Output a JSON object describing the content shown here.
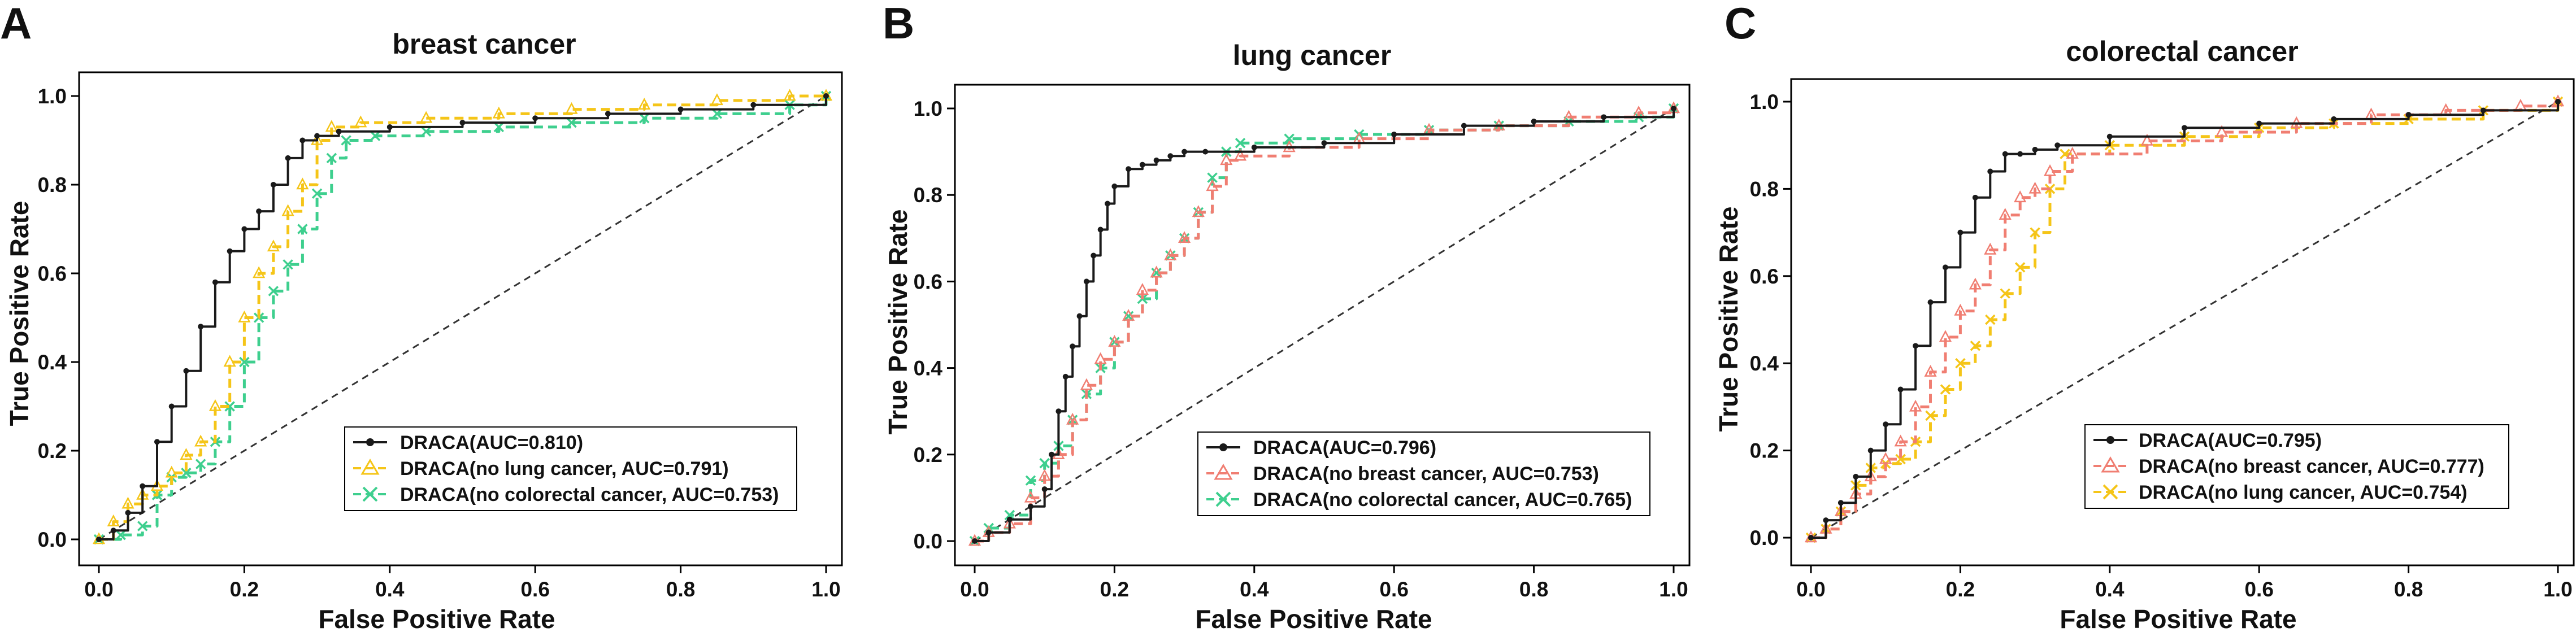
{
  "figure": {
    "panels": [
      "A",
      "B",
      "C"
    ]
  },
  "colors": {
    "draca": "#1a1a1a",
    "yellow": "#f5c518",
    "green": "#3ecf8e",
    "salmon": "#f07e72",
    "diagonal": "#333333",
    "frame": "#000000"
  },
  "chart_data": [
    {
      "type": "line",
      "panel": "A",
      "title": "breast cancer",
      "xlabel": "False Positive Rate",
      "ylabel": "True Positive Rate",
      "xlim": [
        0.0,
        1.0
      ],
      "ylim": [
        0.0,
        1.0
      ],
      "xticks": [
        "0.0",
        "0.2",
        "0.4",
        "0.6",
        "0.8",
        "1.0"
      ],
      "yticks": [
        "0.0",
        "0.2",
        "0.4",
        "0.6",
        "0.8",
        "1.0"
      ],
      "legend_position": "bottom-right",
      "diagonal": true,
      "series": [
        {
          "name": "DRACA(AUC=0.810)",
          "color": "#1a1a1a",
          "style": "solid",
          "marker": "dot",
          "x": [
            0.0,
            0.02,
            0.04,
            0.06,
            0.08,
            0.1,
            0.12,
            0.14,
            0.16,
            0.18,
            0.2,
            0.22,
            0.24,
            0.26,
            0.28,
            0.3,
            0.33,
            0.4,
            0.5,
            0.6,
            0.7,
            0.8,
            0.9,
            1.0
          ],
          "y": [
            0.0,
            0.02,
            0.06,
            0.12,
            0.22,
            0.3,
            0.38,
            0.48,
            0.58,
            0.65,
            0.7,
            0.74,
            0.8,
            0.86,
            0.9,
            0.91,
            0.92,
            0.93,
            0.94,
            0.95,
            0.96,
            0.97,
            0.98,
            1.0
          ]
        },
        {
          "name": "DRACA(no lung cancer, AUC=0.791)",
          "color": "#f5c518",
          "style": "dashed",
          "marker": "triangle",
          "x": [
            0.0,
            0.02,
            0.04,
            0.06,
            0.08,
            0.1,
            0.12,
            0.14,
            0.16,
            0.18,
            0.2,
            0.22,
            0.24,
            0.26,
            0.28,
            0.3,
            0.32,
            0.36,
            0.45,
            0.55,
            0.65,
            0.75,
            0.85,
            0.95,
            1.0
          ],
          "y": [
            0.0,
            0.04,
            0.08,
            0.1,
            0.12,
            0.15,
            0.19,
            0.22,
            0.3,
            0.4,
            0.5,
            0.6,
            0.66,
            0.74,
            0.8,
            0.9,
            0.93,
            0.94,
            0.95,
            0.96,
            0.97,
            0.98,
            0.99,
            1.0,
            1.0
          ]
        },
        {
          "name": "DRACA(no colorectal cancer, AUC=0.753)",
          "color": "#3ecf8e",
          "style": "dashed",
          "marker": "x",
          "x": [
            0.0,
            0.03,
            0.06,
            0.08,
            0.1,
            0.12,
            0.14,
            0.16,
            0.18,
            0.2,
            0.22,
            0.24,
            0.26,
            0.28,
            0.3,
            0.32,
            0.34,
            0.38,
            0.45,
            0.55,
            0.65,
            0.75,
            0.85,
            0.95,
            1.0
          ],
          "y": [
            0.0,
            0.01,
            0.03,
            0.1,
            0.14,
            0.15,
            0.17,
            0.22,
            0.3,
            0.4,
            0.5,
            0.56,
            0.62,
            0.7,
            0.78,
            0.86,
            0.9,
            0.91,
            0.92,
            0.93,
            0.94,
            0.95,
            0.96,
            0.98,
            1.0
          ]
        }
      ]
    },
    {
      "type": "line",
      "panel": "B",
      "title": "lung cancer",
      "xlabel": "False Positive Rate",
      "ylabel": "True Positive Rate",
      "xlim": [
        0.0,
        1.0
      ],
      "ylim": [
        0.0,
        1.0
      ],
      "xticks": [
        "0.0",
        "0.2",
        "0.4",
        "0.6",
        "0.8",
        "1.0"
      ],
      "yticks": [
        "0.0",
        "0.2",
        "0.4",
        "0.6",
        "0.8",
        "1.0"
      ],
      "legend_position": "bottom-right",
      "diagonal": true,
      "series": [
        {
          "name": "DRACA(AUC=0.796)",
          "color": "#1a1a1a",
          "style": "solid",
          "marker": "dot",
          "x": [
            0.0,
            0.02,
            0.05,
            0.08,
            0.1,
            0.11,
            0.12,
            0.13,
            0.14,
            0.15,
            0.16,
            0.17,
            0.18,
            0.19,
            0.2,
            0.22,
            0.24,
            0.26,
            0.28,
            0.3,
            0.33,
            0.4,
            0.5,
            0.6,
            0.7,
            0.8,
            0.9,
            1.0
          ],
          "y": [
            0.0,
            0.02,
            0.05,
            0.08,
            0.12,
            0.2,
            0.3,
            0.38,
            0.45,
            0.52,
            0.6,
            0.66,
            0.72,
            0.78,
            0.82,
            0.86,
            0.87,
            0.88,
            0.89,
            0.9,
            0.9,
            0.91,
            0.92,
            0.94,
            0.96,
            0.97,
            0.98,
            1.0
          ]
        },
        {
          "name": "DRACA(no breast cancer, AUC=0.753)",
          "color": "#f07e72",
          "style": "dashed",
          "marker": "triangle",
          "x": [
            0.0,
            0.02,
            0.05,
            0.08,
            0.1,
            0.12,
            0.14,
            0.16,
            0.18,
            0.2,
            0.22,
            0.24,
            0.26,
            0.28,
            0.3,
            0.32,
            0.34,
            0.36,
            0.38,
            0.45,
            0.55,
            0.65,
            0.75,
            0.85,
            0.95,
            1.0
          ],
          "y": [
            0.0,
            0.02,
            0.04,
            0.1,
            0.15,
            0.2,
            0.28,
            0.36,
            0.42,
            0.46,
            0.52,
            0.58,
            0.62,
            0.66,
            0.7,
            0.76,
            0.82,
            0.88,
            0.89,
            0.91,
            0.93,
            0.95,
            0.96,
            0.98,
            0.99,
            1.0
          ]
        },
        {
          "name": "DRACA(no colorectal cancer, AUC=0.765)",
          "color": "#3ecf8e",
          "style": "dashed",
          "marker": "x",
          "x": [
            0.0,
            0.02,
            0.05,
            0.08,
            0.1,
            0.12,
            0.14,
            0.16,
            0.18,
            0.2,
            0.22,
            0.24,
            0.26,
            0.28,
            0.3,
            0.32,
            0.34,
            0.36,
            0.38,
            0.45,
            0.55,
            0.65,
            0.75,
            0.85,
            0.95,
            1.0
          ],
          "y": [
            0.0,
            0.03,
            0.06,
            0.14,
            0.18,
            0.22,
            0.28,
            0.34,
            0.4,
            0.46,
            0.52,
            0.56,
            0.62,
            0.66,
            0.7,
            0.76,
            0.84,
            0.9,
            0.92,
            0.93,
            0.94,
            0.95,
            0.96,
            0.97,
            0.98,
            1.0
          ]
        }
      ]
    },
    {
      "type": "line",
      "panel": "C",
      "title": "colorectal cancer",
      "xlabel": "False Positive Rate",
      "ylabel": "True Positive Rate",
      "xlim": [
        0.0,
        1.0
      ],
      "ylim": [
        0.0,
        1.0
      ],
      "xticks": [
        "0.0",
        "0.2",
        "0.4",
        "0.6",
        "0.8",
        "1.0"
      ],
      "yticks": [
        "0.0",
        "0.2",
        "0.4",
        "0.6",
        "0.8",
        "1.0"
      ],
      "legend_position": "bottom-right",
      "diagonal": true,
      "series": [
        {
          "name": "DRACA(AUC=0.795)",
          "color": "#1a1a1a",
          "style": "solid",
          "marker": "dot",
          "x": [
            0.0,
            0.02,
            0.04,
            0.06,
            0.08,
            0.1,
            0.12,
            0.14,
            0.16,
            0.18,
            0.2,
            0.22,
            0.24,
            0.26,
            0.28,
            0.3,
            0.33,
            0.4,
            0.5,
            0.6,
            0.7,
            0.8,
            0.9,
            1.0
          ],
          "y": [
            0.0,
            0.04,
            0.08,
            0.14,
            0.2,
            0.26,
            0.34,
            0.44,
            0.54,
            0.62,
            0.7,
            0.78,
            0.84,
            0.88,
            0.88,
            0.89,
            0.9,
            0.92,
            0.94,
            0.95,
            0.96,
            0.97,
            0.98,
            1.0
          ]
        },
        {
          "name": "DRACA(no breast cancer, AUC=0.777)",
          "color": "#f07e72",
          "style": "dashed",
          "marker": "triangle",
          "x": [
            0.0,
            0.02,
            0.04,
            0.06,
            0.08,
            0.1,
            0.12,
            0.14,
            0.16,
            0.18,
            0.2,
            0.22,
            0.24,
            0.26,
            0.28,
            0.3,
            0.32,
            0.35,
            0.45,
            0.55,
            0.65,
            0.75,
            0.85,
            0.95,
            1.0
          ],
          "y": [
            0.0,
            0.02,
            0.06,
            0.1,
            0.14,
            0.18,
            0.22,
            0.3,
            0.38,
            0.46,
            0.52,
            0.58,
            0.66,
            0.74,
            0.78,
            0.8,
            0.84,
            0.88,
            0.91,
            0.93,
            0.95,
            0.97,
            0.98,
            0.99,
            1.0
          ]
        },
        {
          "name": "DRACA(no lung cancer, AUC=0.754)",
          "color": "#f5c518",
          "style": "dashed",
          "marker": "x",
          "x": [
            0.0,
            0.02,
            0.04,
            0.06,
            0.08,
            0.1,
            0.12,
            0.14,
            0.16,
            0.18,
            0.2,
            0.22,
            0.24,
            0.26,
            0.28,
            0.3,
            0.32,
            0.34,
            0.4,
            0.5,
            0.6,
            0.7,
            0.8,
            0.9,
            1.0
          ],
          "y": [
            0.0,
            0.02,
            0.06,
            0.12,
            0.16,
            0.17,
            0.18,
            0.22,
            0.28,
            0.34,
            0.4,
            0.44,
            0.5,
            0.56,
            0.62,
            0.7,
            0.8,
            0.88,
            0.9,
            0.92,
            0.94,
            0.95,
            0.96,
            0.98,
            1.0
          ]
        }
      ]
    }
  ]
}
